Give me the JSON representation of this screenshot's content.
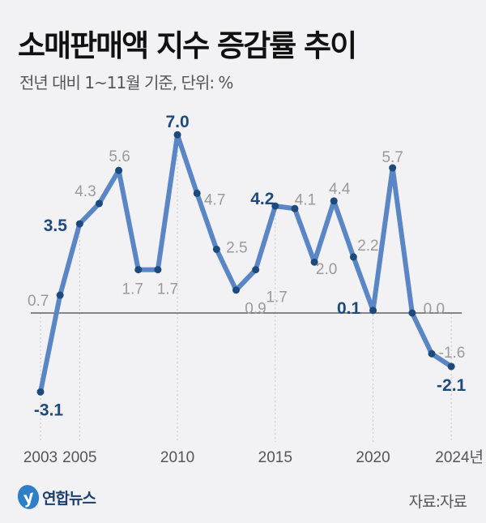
{
  "chart_data": {
    "type": "line",
    "title": "소매판매액 지수 증감률 추이",
    "subtitle": "전년 대비 1~11월 기준, 단위: %",
    "x": [
      2003,
      2004,
      2005,
      2006,
      2007,
      2008,
      2009,
      2010,
      2011,
      2012,
      2013,
      2014,
      2015,
      2016,
      2017,
      2018,
      2019,
      2020,
      2021,
      2022,
      2023,
      2024
    ],
    "values": [
      -3.1,
      0.7,
      3.5,
      4.3,
      5.6,
      1.7,
      1.7,
      7.0,
      4.7,
      2.5,
      0.9,
      1.7,
      4.2,
      4.1,
      2.0,
      4.4,
      2.2,
      0.1,
      5.7,
      0.0,
      -1.6,
      -2.1
    ],
    "data_labels": [
      "-3.1",
      "0.7",
      "3.5",
      "4.3",
      "5.6",
      "1.7",
      "1.7",
      "7.0",
      "4.7",
      "2.5",
      "0.9",
      "1.7",
      "4.2",
      "4.1",
      "2.0",
      "4.4",
      "2.2",
      "0.1",
      "5.7",
      "0.0",
      "-1.6",
      "-2.1"
    ],
    "highlighted_years": [
      2003,
      2005,
      2010,
      2015,
      2020,
      2024
    ],
    "x_tick_labels": [
      "2003",
      "2005",
      "2010",
      "2015",
      "2020",
      "2024년"
    ],
    "x_ticks": [
      2003,
      2005,
      2010,
      2015,
      2020,
      2024
    ],
    "ylim": [
      -3.5,
      7.5
    ],
    "baseline": 0,
    "grid": false,
    "colors": {
      "line": "#5b86c5",
      "marker": "#1d4a7c",
      "highlight_label": "#1d4a7c",
      "label": "#9a9a9a",
      "baseline": "#444444",
      "background": "#f2f2f4"
    }
  },
  "footer": {
    "logo_text": "연합뉴스",
    "source": "자료:자료"
  }
}
